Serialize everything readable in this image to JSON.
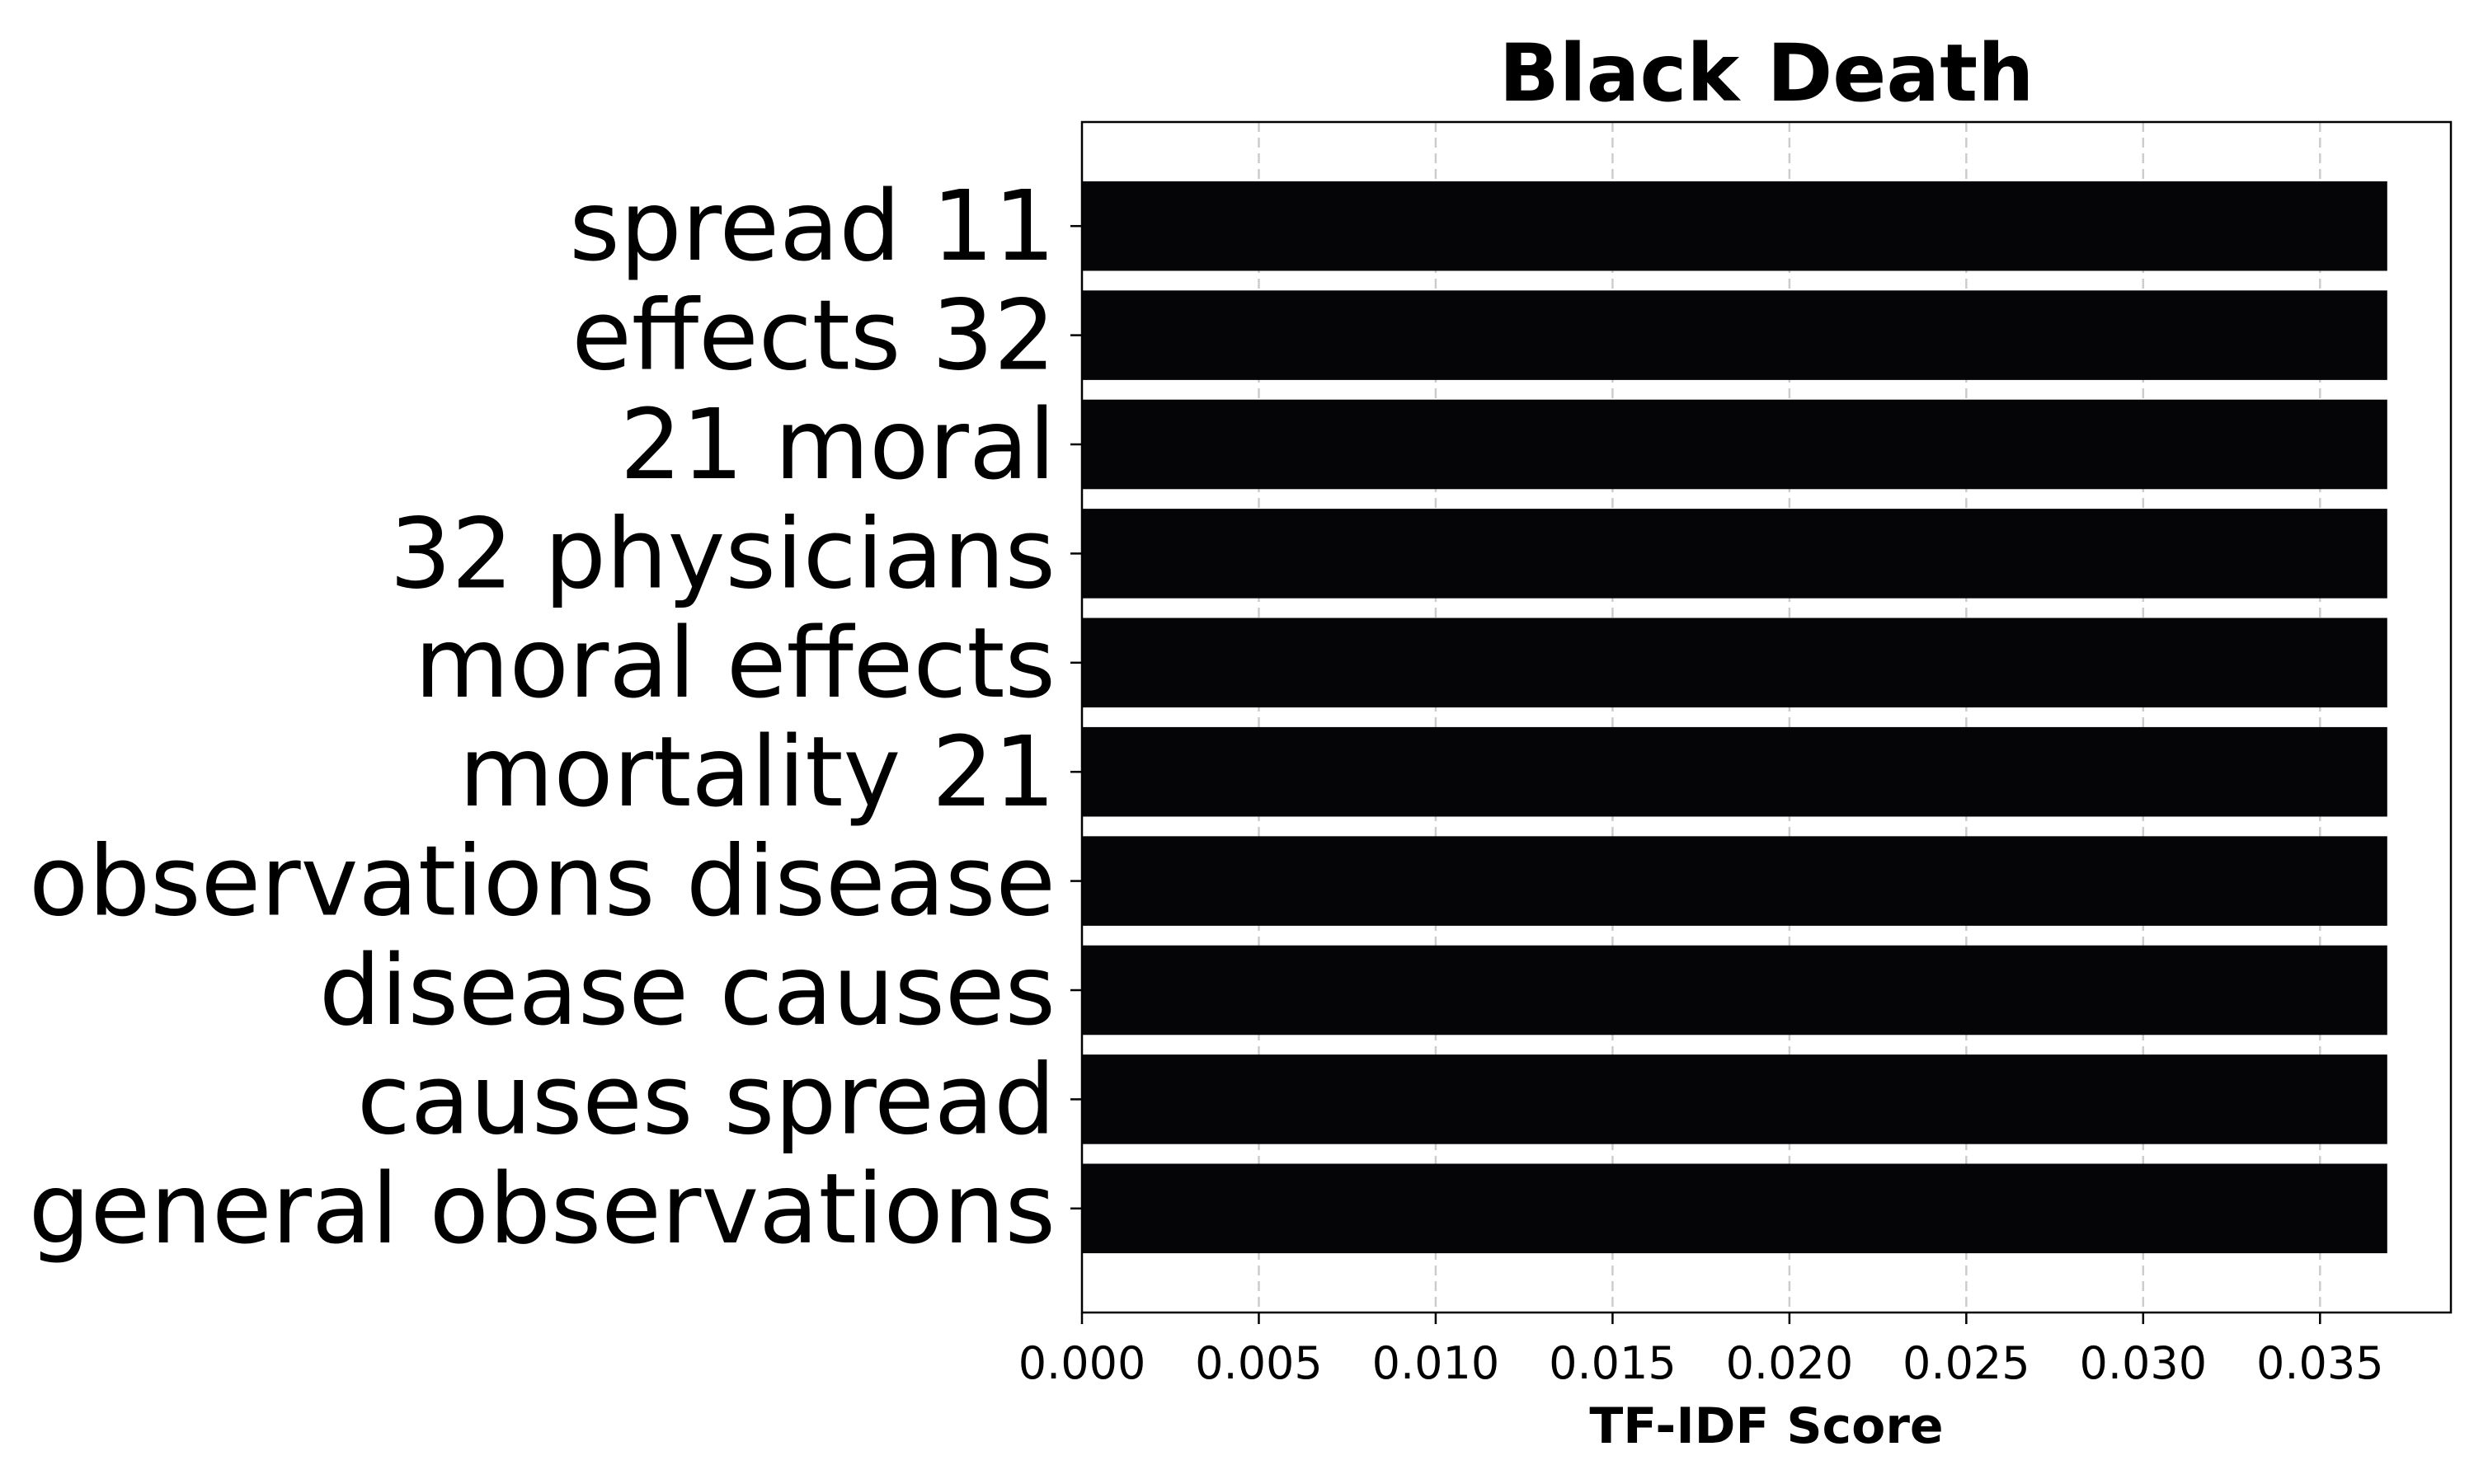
{
  "chart_data": {
    "type": "bar",
    "orientation": "horizontal",
    "title": "Black Death",
    "xlabel": "TF-IDF Score",
    "ylabel": "",
    "categories": [
      "spread 11",
      "effects 32",
      "21 moral",
      "32 physicians",
      "moral effects",
      "mortality 21",
      "observations disease",
      "disease causes",
      "causes spread",
      "general observations"
    ],
    "values": [
      0.0369,
      0.0369,
      0.0369,
      0.0369,
      0.0369,
      0.0369,
      0.0369,
      0.0369,
      0.0369,
      0.0369
    ],
    "xlim": [
      0,
      0.0387
    ],
    "xticks": [
      "0.000",
      "0.005",
      "0.010",
      "0.015",
      "0.020",
      "0.025",
      "0.030",
      "0.035"
    ],
    "xtick_values": [
      0,
      0.005,
      0.01,
      0.015,
      0.02,
      0.025,
      0.03,
      0.035
    ],
    "grid": {
      "x": true,
      "y": false,
      "style": "dashed"
    },
    "legend": "none",
    "colors": {
      "bar": "#050508",
      "grid": "#cccccc",
      "axes": "#000000",
      "background": "#ffffff"
    }
  }
}
